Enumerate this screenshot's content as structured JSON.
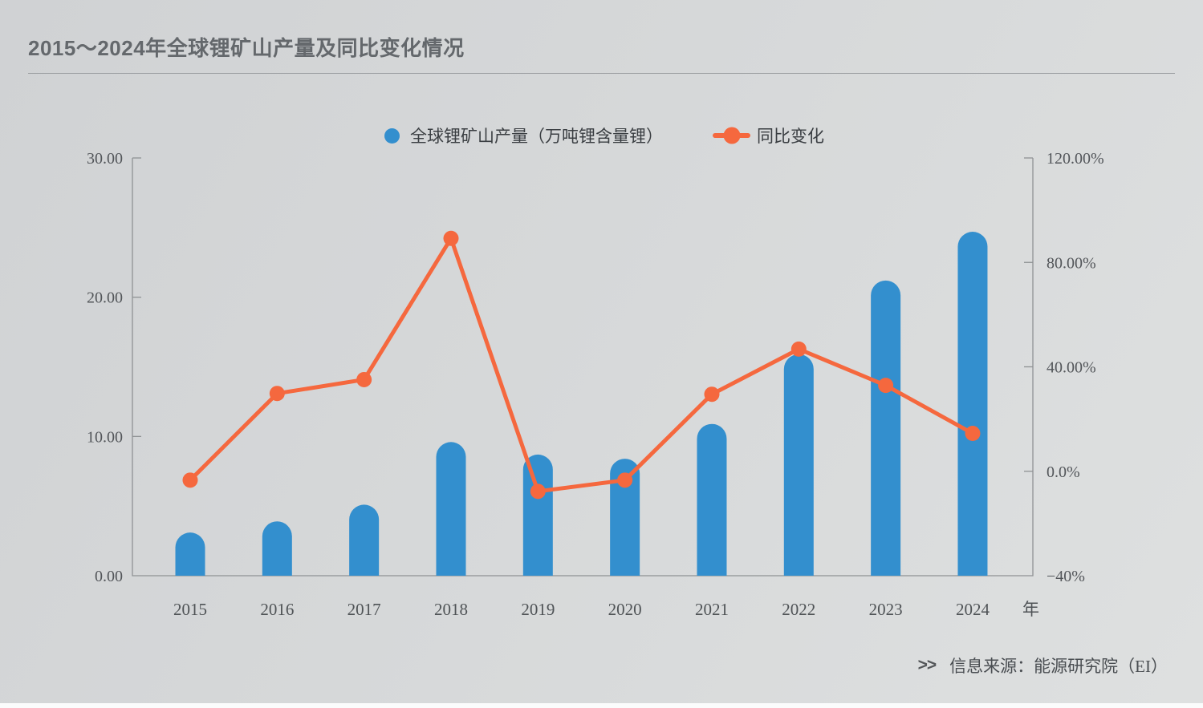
{
  "header": {
    "title": "2015～2024年全球锂矿山产量及同比变化情况"
  },
  "legend": {
    "production_label": "全球锂矿山产量（万吨锂含量锂）",
    "yoy_label": "同比变化"
  },
  "source": {
    "marker": ">>",
    "text": "信息来源：能源研究院（EI）"
  },
  "colors": {
    "bar": "#338fce",
    "line": "#f5683e",
    "axis": "#8f9294",
    "axis_text": "#53565a",
    "background_top": "#d0d2d4",
    "background_bottom": "#dee0e0"
  },
  "chart_data": {
    "type": "bar",
    "subtype": "bar+line dual axis",
    "title": "2015～2024年全球锂矿山产量及同比变化情况",
    "categories": [
      "2015",
      "2016",
      "2017",
      "2018",
      "2019",
      "2020",
      "2021",
      "2022",
      "2023",
      "2024"
    ],
    "x_unit_label": "年",
    "series": [
      {
        "name": "全球锂矿山产量（万吨锂含量锂）",
        "type": "bar",
        "axis": "left",
        "color": "#338fce",
        "values": [
          3.1,
          3.9,
          5.1,
          9.6,
          8.7,
          8.4,
          10.9,
          15.9,
          21.2,
          24.7
        ]
      },
      {
        "name": "同比变化",
        "type": "line",
        "axis": "right",
        "color": "#f5683e",
        "values_pct": [
          -3.4,
          29.8,
          35.1,
          89.2,
          -7.7,
          -3.4,
          29.5,
          46.8,
          32.9,
          14.5
        ]
      }
    ],
    "left_axis": {
      "label": "产量（万吨锂含量锂）",
      "min": 0,
      "max": 30,
      "tick_values": [
        30,
        20,
        10,
        0
      ],
      "tick_labels": [
        "30.00",
        "20.00",
        "10.00",
        "0.00"
      ]
    },
    "right_axis": {
      "label": "同比变化",
      "min": -40,
      "max": 120,
      "tick_values": [
        120,
        80,
        40,
        0,
        -40
      ],
      "tick_labels": [
        "120.00%",
        "80.00%",
        "40.00%",
        "0.0%",
        "−40%"
      ]
    },
    "grid": false,
    "legend_position": "top-center"
  }
}
